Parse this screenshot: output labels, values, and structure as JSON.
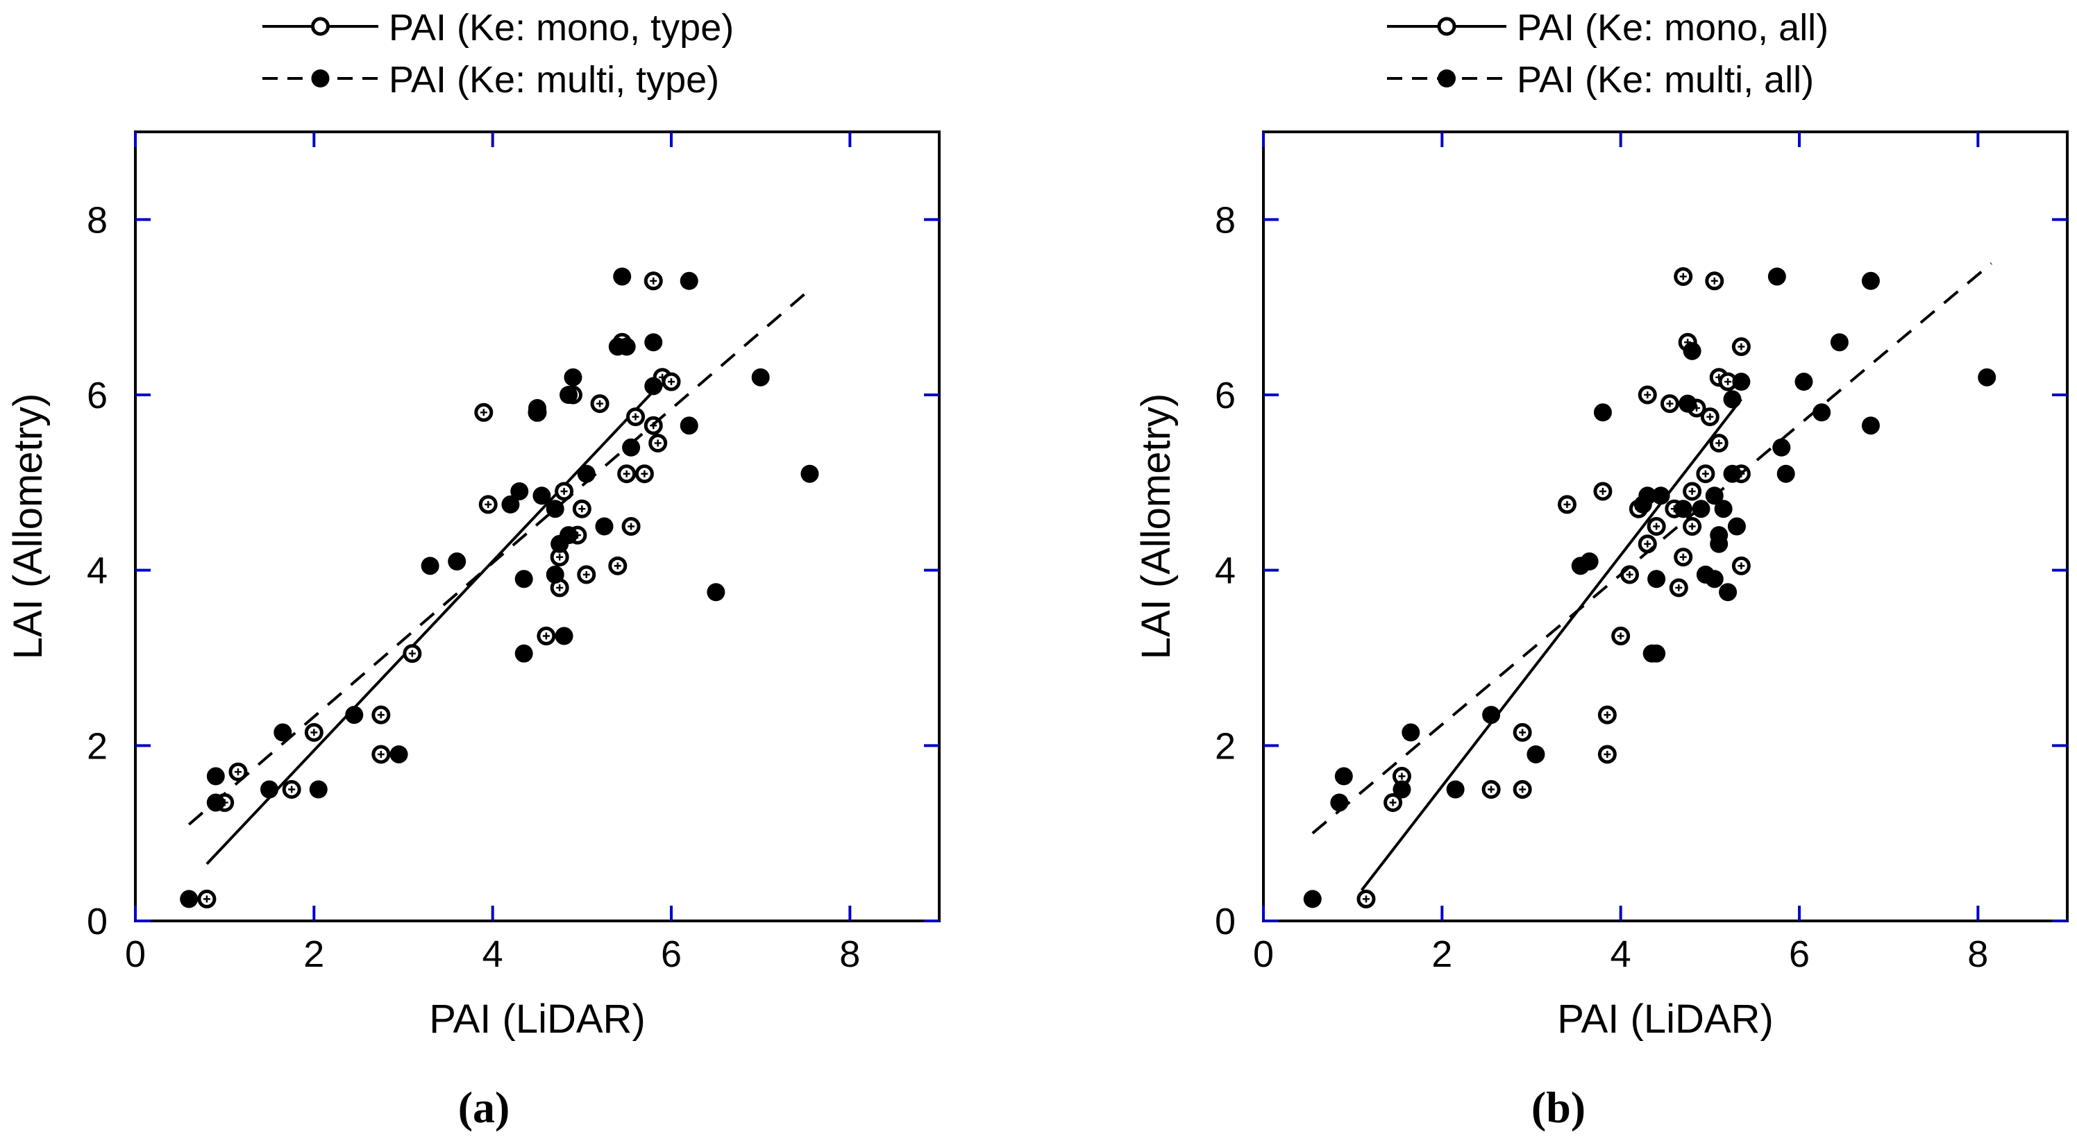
{
  "colors": {
    "ink": "#000000",
    "tick": "#0000c8",
    "background": "#ffffff"
  },
  "chart_data": [
    {
      "type": "scatter",
      "panel_label": "(a)",
      "panel_letter": "a",
      "xlabel": "PAI (LiDAR)",
      "ylabel": "LAI (Allometry)",
      "xlim": [
        0,
        9
      ],
      "ylim": [
        0,
        9
      ],
      "xticks": [
        0,
        2,
        4,
        6,
        8
      ],
      "yticks": [
        0,
        2,
        4,
        6,
        8
      ],
      "grid": false,
      "legend_position": "top-center, above plot",
      "series": [
        {
          "name": "PAI (Ke: mono, type)",
          "marker": "open-circle-cross",
          "line": "solid",
          "fit": [
            [
              0.8,
              0.65
            ],
            [
              5.9,
              6.15
            ]
          ],
          "points": [
            [
              0.8,
              0.25
            ],
            [
              1.0,
              1.35
            ],
            [
              1.15,
              1.7
            ],
            [
              1.75,
              1.5
            ],
            [
              2.0,
              2.15
            ],
            [
              2.75,
              2.35
            ],
            [
              2.75,
              1.9
            ],
            [
              3.1,
              3.05
            ],
            [
              3.9,
              5.8
            ],
            [
              3.95,
              4.75
            ],
            [
              4.5,
              5.8
            ],
            [
              4.6,
              3.25
            ],
            [
              4.75,
              4.15
            ],
            [
              4.75,
              3.8
            ],
            [
              4.8,
              4.9
            ],
            [
              4.9,
              6.0
            ],
            [
              4.95,
              4.4
            ],
            [
              5.0,
              4.7
            ],
            [
              5.05,
              3.95
            ],
            [
              5.2,
              5.9
            ],
            [
              5.4,
              4.05
            ],
            [
              5.45,
              6.6
            ],
            [
              5.5,
              5.1
            ],
            [
              5.55,
              4.5
            ],
            [
              5.6,
              5.75
            ],
            [
              5.7,
              5.1
            ],
            [
              5.8,
              7.3
            ],
            [
              5.8,
              5.65
            ],
            [
              5.85,
              5.45
            ],
            [
              5.9,
              6.2
            ],
            [
              6.0,
              6.15
            ]
          ]
        },
        {
          "name": "PAI (Ke: multi, type)",
          "marker": "filled-circle",
          "line": "dashed",
          "fit": [
            [
              0.6,
              1.1
            ],
            [
              7.55,
              7.2
            ]
          ],
          "points": [
            [
              0.6,
              0.25
            ],
            [
              0.9,
              1.35
            ],
            [
              0.9,
              1.65
            ],
            [
              1.5,
              1.5
            ],
            [
              1.65,
              2.15
            ],
            [
              2.05,
              1.5
            ],
            [
              2.45,
              2.35
            ],
            [
              2.95,
              1.9
            ],
            [
              3.3,
              4.05
            ],
            [
              3.6,
              4.1
            ],
            [
              4.2,
              4.75
            ],
            [
              4.3,
              4.9
            ],
            [
              4.35,
              3.05
            ],
            [
              4.35,
              3.9
            ],
            [
              4.5,
              5.85
            ],
            [
              4.5,
              5.8
            ],
            [
              4.55,
              4.85
            ],
            [
              4.7,
              4.7
            ],
            [
              4.7,
              3.95
            ],
            [
              4.75,
              4.3
            ],
            [
              4.8,
              3.25
            ],
            [
              4.85,
              4.4
            ],
            [
              4.85,
              6.0
            ],
            [
              4.9,
              6.2
            ],
            [
              5.05,
              5.1
            ],
            [
              5.25,
              4.5
            ],
            [
              5.4,
              6.55
            ],
            [
              5.45,
              7.35
            ],
            [
              5.5,
              6.55
            ],
            [
              5.55,
              5.4
            ],
            [
              5.8,
              6.6
            ],
            [
              5.8,
              6.1
            ],
            [
              6.2,
              7.3
            ],
            [
              6.2,
              5.65
            ],
            [
              6.5,
              3.75
            ],
            [
              7.0,
              6.2
            ],
            [
              7.55,
              5.1
            ]
          ]
        }
      ]
    },
    {
      "type": "scatter",
      "panel_label": "(b)",
      "panel_letter": "b",
      "xlabel": "PAI (LiDAR)",
      "ylabel": "LAI (Allometry)",
      "xlim": [
        0,
        9
      ],
      "ylim": [
        0,
        9
      ],
      "xticks": [
        0,
        2,
        4,
        6,
        8
      ],
      "yticks": [
        0,
        2,
        4,
        6,
        8
      ],
      "grid": false,
      "legend_position": "top-center, above plot",
      "series": [
        {
          "name": "PAI (Ke: mono, all)",
          "marker": "open-circle-cross",
          "line": "solid",
          "fit": [
            [
              1.1,
              0.35
            ],
            [
              5.35,
              5.95
            ]
          ],
          "points": [
            [
              1.15,
              0.25
            ],
            [
              1.45,
              1.35
            ],
            [
              1.55,
              1.65
            ],
            [
              2.55,
              1.5
            ],
            [
              2.9,
              2.15
            ],
            [
              2.9,
              1.5
            ],
            [
              3.4,
              4.75
            ],
            [
              3.8,
              4.9
            ],
            [
              3.85,
              2.35
            ],
            [
              3.85,
              1.9
            ],
            [
              4.0,
              3.25
            ],
            [
              4.1,
              3.95
            ],
            [
              4.2,
              4.7
            ],
            [
              4.3,
              6.0
            ],
            [
              4.3,
              4.3
            ],
            [
              4.4,
              4.5
            ],
            [
              4.55,
              5.9
            ],
            [
              4.6,
              4.7
            ],
            [
              4.65,
              3.8
            ],
            [
              4.7,
              4.15
            ],
            [
              4.7,
              7.35
            ],
            [
              4.75,
              6.6
            ],
            [
              4.8,
              4.5
            ],
            [
              4.8,
              4.9
            ],
            [
              4.85,
              5.85
            ],
            [
              4.95,
              5.1
            ],
            [
              5.0,
              5.75
            ],
            [
              5.05,
              7.3
            ],
            [
              5.1,
              5.45
            ],
            [
              5.1,
              6.2
            ],
            [
              5.2,
              6.15
            ],
            [
              5.35,
              6.55
            ],
            [
              5.35,
              5.1
            ],
            [
              5.35,
              4.05
            ]
          ]
        },
        {
          "name": "PAI (Ke: multi, all)",
          "marker": "filled-circle",
          "line": "dashed",
          "fit": [
            [
              0.55,
              1.0
            ],
            [
              8.15,
              7.5
            ]
          ],
          "points": [
            [
              0.55,
              0.25
            ],
            [
              0.85,
              1.35
            ],
            [
              0.9,
              1.65
            ],
            [
              1.55,
              1.5
            ],
            [
              1.65,
              2.15
            ],
            [
              2.15,
              1.5
            ],
            [
              2.55,
              2.35
            ],
            [
              3.05,
              1.9
            ],
            [
              3.55,
              4.05
            ],
            [
              3.65,
              4.1
            ],
            [
              3.8,
              5.8
            ],
            [
              4.25,
              4.75
            ],
            [
              4.3,
              4.85
            ],
            [
              4.35,
              3.05
            ],
            [
              4.4,
              3.05
            ],
            [
              4.4,
              3.9
            ],
            [
              4.45,
              4.85
            ],
            [
              4.7,
              4.7
            ],
            [
              4.75,
              5.9
            ],
            [
              4.8,
              6.5
            ],
            [
              4.9,
              4.7
            ],
            [
              4.95,
              3.95
            ],
            [
              5.05,
              3.9
            ],
            [
              5.05,
              4.85
            ],
            [
              5.1,
              4.4
            ],
            [
              5.1,
              4.3
            ],
            [
              5.15,
              4.7
            ],
            [
              5.2,
              3.75
            ],
            [
              5.25,
              5.95
            ],
            [
              5.25,
              5.1
            ],
            [
              5.3,
              4.5
            ],
            [
              5.35,
              6.15
            ],
            [
              5.75,
              7.35
            ],
            [
              5.8,
              5.4
            ],
            [
              5.85,
              5.1
            ],
            [
              6.05,
              6.15
            ],
            [
              6.25,
              5.8
            ],
            [
              6.45,
              6.6
            ],
            [
              6.8,
              7.3
            ],
            [
              6.8,
              5.65
            ],
            [
              8.1,
              6.2
            ]
          ]
        }
      ]
    }
  ]
}
